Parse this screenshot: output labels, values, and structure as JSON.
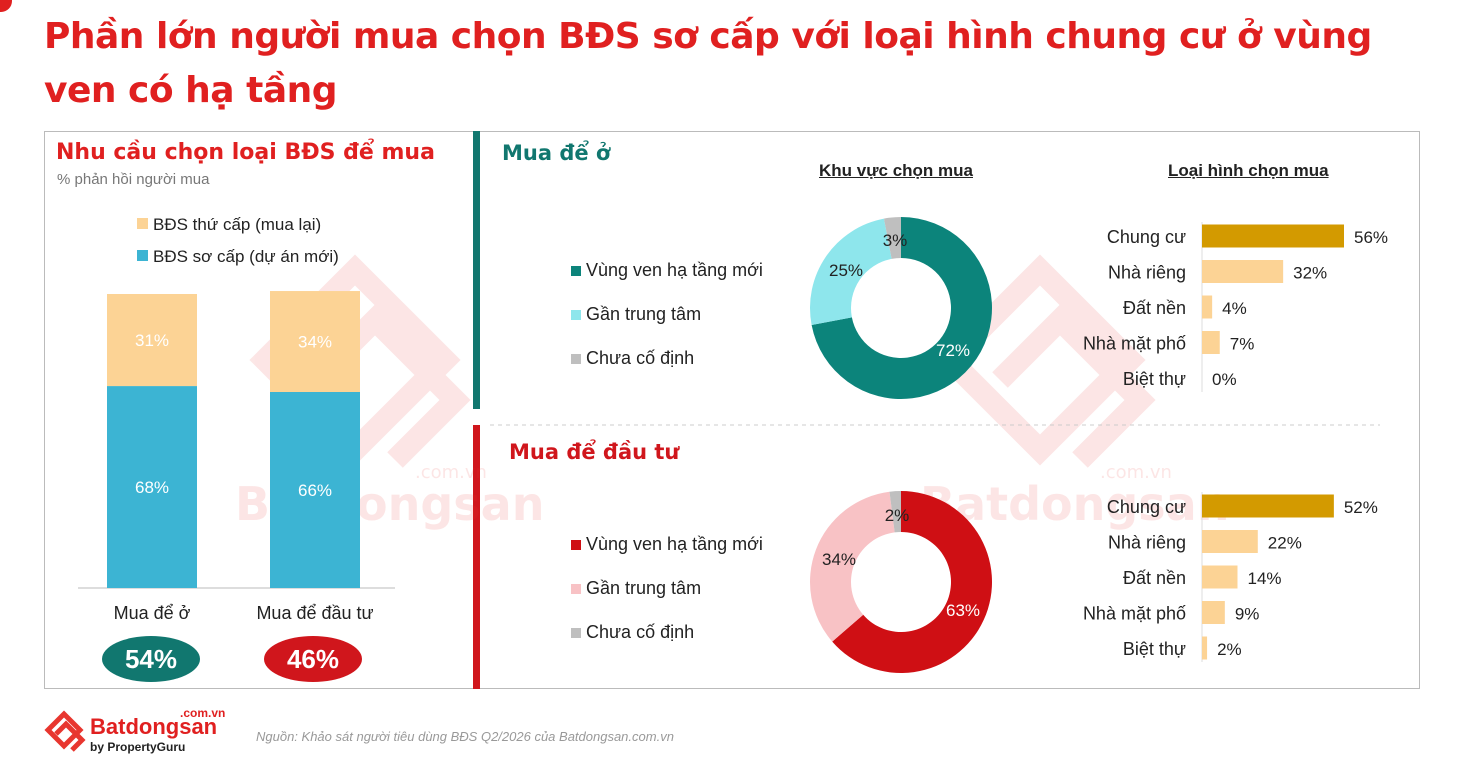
{
  "title": "Phần lớn người mua chọn BĐS sơ cấp với loại hình chung cư ở vùng ven có hạ tầng",
  "left_panel": {
    "heading": "Nhu cầu chọn loại BĐS để mua",
    "subheading": "% phản hồi người mua",
    "legend": [
      "BĐS thứ cấp (mua lại)",
      "BĐS sơ cấp (dự án mới)"
    ],
    "badges": [
      {
        "value": "54%",
        "color": "#11776f"
      },
      {
        "value": "46%",
        "color": "#d0161c"
      }
    ]
  },
  "right_panel": {
    "col_headers": {
      "area": "Khu vực chọn mua",
      "type": "Loại hình chọn mua"
    },
    "sections": [
      {
        "label": "Mua để ở",
        "color": "#11776f"
      },
      {
        "label": "Mua để đầu tư",
        "color": "#d0161c"
      }
    ]
  },
  "colors": {
    "secondary": "#fcd395",
    "primary": "#3cb4d3",
    "teal": "#0c847b",
    "lightteal": "#8ee6ec",
    "gray": "#bfbfbf",
    "red": "#cf0f14",
    "pink": "#f8c2c5",
    "gold": "#d39a00",
    "peach": "#fcd395"
  },
  "watermark": {
    "brand": "Batdongsan",
    "domain": ".com.vn"
  },
  "footer": {
    "logo_name": "Batdongsan",
    "logo_domain": ".com.vn",
    "logo_sub": "by PropertyGuru",
    "source": "Nguồn: Khảo sát người tiêu dùng BĐS Q2/2026 của Batdongsan.com.vn"
  },
  "chart_data": [
    {
      "type": "bar",
      "stacked": true,
      "categories": [
        "Mua để ở",
        "Mua để đầu tư"
      ],
      "series": [
        {
          "name": "BĐS sơ cấp (dự án mới)",
          "values": [
            68,
            66
          ],
          "labels": [
            "68%",
            "66%"
          ]
        },
        {
          "name": "BĐS thứ cấp (mua lại)",
          "values": [
            31,
            34
          ],
          "labels": [
            "31%",
            "34%"
          ]
        }
      ]
    },
    {
      "type": "pie",
      "title": "Khu vực chọn mua",
      "section": "Mua để ở",
      "categories": [
        "Vùng ven hạ tầng mới",
        "Gần trung tâm",
        "Chưa cố định"
      ],
      "values": [
        72,
        25,
        3
      ],
      "labels": [
        "72%",
        "25%",
        "3%"
      ]
    },
    {
      "type": "bar",
      "orientation": "horizontal",
      "title": "Loại hình chọn mua",
      "section": "Mua để ở",
      "categories": [
        "Chung cư",
        "Nhà riêng",
        "Đất nền",
        "Nhà mặt phố",
        "Biệt thự"
      ],
      "values": [
        56,
        32,
        4,
        7,
        0
      ],
      "labels": [
        "56%",
        "32%",
        "4%",
        "7%",
        "0%"
      ]
    },
    {
      "type": "pie",
      "section": "Mua để đầu tư",
      "categories": [
        "Vùng ven hạ tầng mới",
        "Gần trung tâm",
        "Chưa cố định"
      ],
      "values": [
        63,
        34,
        2
      ],
      "labels": [
        "63%",
        "34%",
        "2%"
      ]
    },
    {
      "type": "bar",
      "orientation": "horizontal",
      "section": "Mua để đầu tư",
      "categories": [
        "Chung cư",
        "Nhà riêng",
        "Đất nền",
        "Nhà mặt phố",
        "Biệt thự"
      ],
      "values": [
        52,
        22,
        14,
        9,
        2
      ],
      "labels": [
        "52%",
        "22%",
        "14%",
        "9%",
        "2%"
      ]
    }
  ]
}
